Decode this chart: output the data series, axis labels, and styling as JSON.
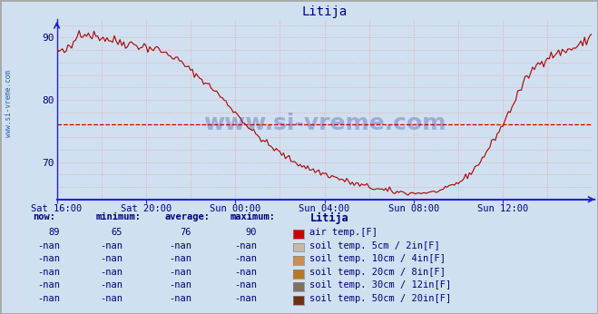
{
  "title": "Litija",
  "title_color": "#000080",
  "bg_color": "#d0e0f0",
  "plot_bg_color": "#d0e0f0",
  "line_color": "#aa0000",
  "average_line_color": "#cc0000",
  "average_value": 76,
  "xlim": [
    0,
    288
  ],
  "ylim": [
    64,
    93
  ],
  "yticks": [
    70,
    80,
    90
  ],
  "xtick_labels": [
    "Sat 16:00",
    "Sat 20:00",
    "Sun 00:00",
    "Sun 04:00",
    "Sun 08:00",
    "Sun 12:00"
  ],
  "xtick_positions": [
    0,
    48,
    96,
    144,
    192,
    240
  ],
  "grid_color": "#e8a0a0",
  "axis_color": "#2222cc",
  "watermark": "www.si-vreme.com",
  "watermark_color": "#1a3080",
  "sidebar_text": "www.si-vreme.com",
  "stats_now": "89",
  "stats_min": "65",
  "stats_avg": "76",
  "stats_max": "90",
  "legend_station": "Litija",
  "legend_items": [
    {
      "label": "air temp.[F]",
      "color": "#cc0000"
    },
    {
      "label": "soil temp. 5cm / 2in[F]",
      "color": "#c8b8a8"
    },
    {
      "label": "soil temp. 10cm / 4in[F]",
      "color": "#c89050"
    },
    {
      "label": "soil temp. 20cm / 8in[F]",
      "color": "#b87820"
    },
    {
      "label": "soil temp. 30cm / 12in[F]",
      "color": "#807060"
    },
    {
      "label": "soil temp. 50cm / 20in[F]",
      "color": "#703010"
    }
  ]
}
